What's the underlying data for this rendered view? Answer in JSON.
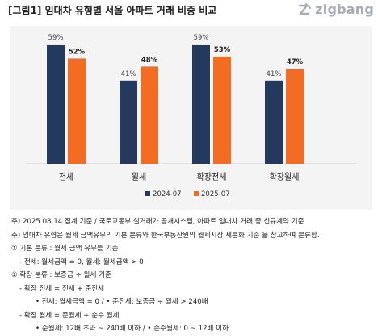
{
  "header": {
    "title": "[그림1] 임대차 유형별 서울 아파트 거래 비중 비교",
    "brand": "zigbang",
    "brand_icon": "zigbang-logo-icon"
  },
  "chart_data": {
    "type": "bar",
    "categories": [
      "전세",
      "월세",
      "확장전세",
      "확장월세"
    ],
    "series": [
      {
        "name": "2024-07",
        "values": [
          59,
          41,
          59,
          41
        ],
        "labels": [
          "59%",
          "41%",
          "59%",
          "41%"
        ],
        "color": "#233a5e"
      },
      {
        "name": "2025-07",
        "values": [
          52,
          48,
          53,
          47
        ],
        "labels": [
          "52%",
          "48%",
          "53%",
          "47%"
        ],
        "color": "#f36c21"
      }
    ],
    "ylim": [
      0,
      65
    ],
    "grid": false,
    "legend": "bottom-right"
  },
  "notes": [
    "주) 2025.08.14 집계 기준 / 국토교통부 실거래가 공개시스템, 아파트 임대차 거래 중 신규계약 기준",
    "주) 임대차 유형은 월세 금액유무의 기본 분류와 한국부동산원의 월세시장 세분화 기준 을 참고하여 분류함.",
    "① 기본 분류 : 월세 금액 유무를 기준",
    "- 전세: 월세금액 = 0, 월세: 월세금액 > 0",
    "② 확장 분류 : 보증금 ÷ 월세 기준",
    "- 확장 전세 = 전세 + 준전세",
    "• 전세: 월세금액 = 0 / • 준전세: 보증금 ÷ 월세 > 240배",
    "- 확장 월세 = 준월세 + 순수 월세",
    "• 준월세: 12배 초과 ~ 240배 이하 / • 순수월세: 0 ~ 12배 이하"
  ]
}
